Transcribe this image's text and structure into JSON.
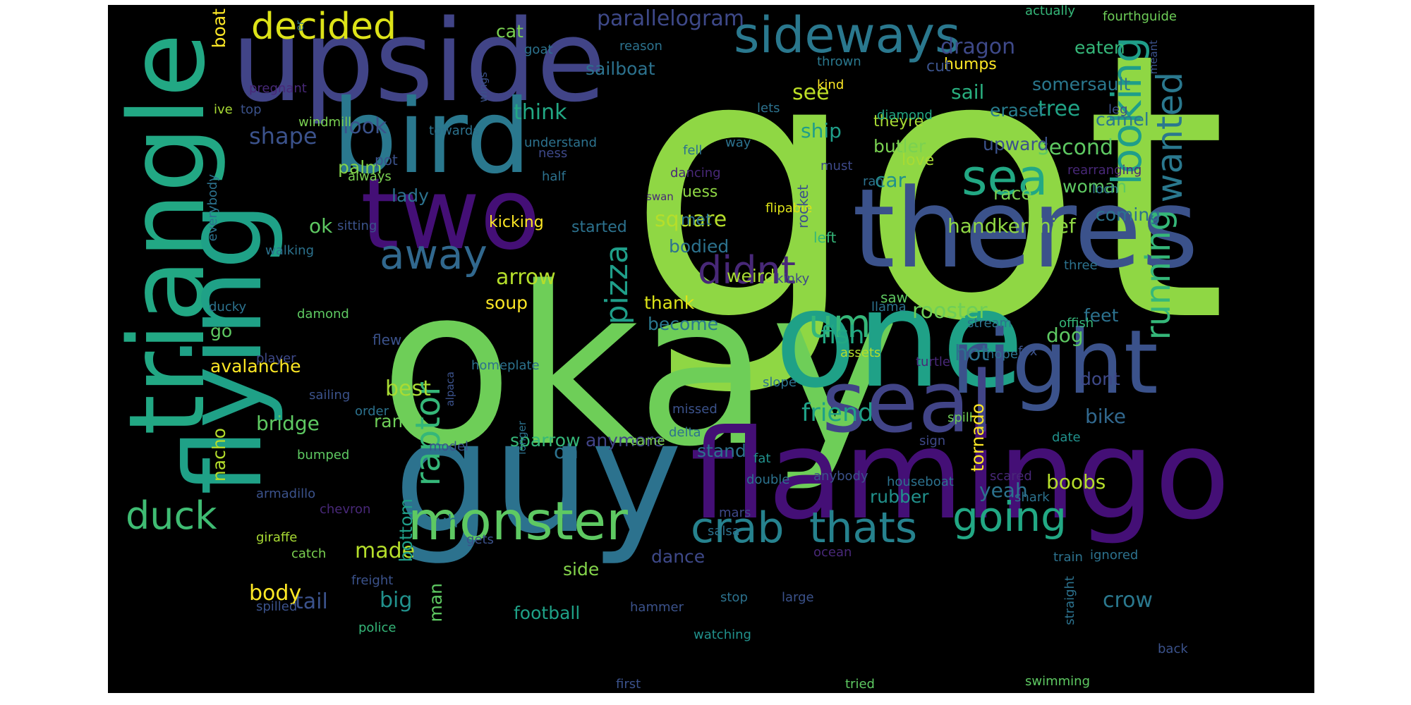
{
  "palette": {
    "background": "#000000",
    "page": "#ffffff",
    "colors": [
      "#440154",
      "#472d7b",
      "#3b528b",
      "#2c728e",
      "#21918c",
      "#28ae80",
      "#5ec962",
      "#addc30",
      "#fde725"
    ]
  },
  "words": [
    {
      "text": "got",
      "color": "#8fd744"
    },
    {
      "text": "okay",
      "color": "#6ece58"
    },
    {
      "text": "one",
      "color": "#1fa187"
    },
    {
      "text": "guy",
      "color": "#2c728e"
    },
    {
      "text": "flamingo",
      "color": "#440f76"
    },
    {
      "text": "upside",
      "color": "#414487"
    },
    {
      "text": "theres",
      "color": "#3b528b"
    },
    {
      "text": "bird",
      "color": "#2a788e"
    },
    {
      "text": "two",
      "color": "#440f76"
    },
    {
      "text": "triangle",
      "color": "#22a884"
    },
    {
      "text": "flying",
      "color": "#1fa187"
    },
    {
      "text": "right",
      "color": "#3b528b"
    },
    {
      "text": "seal",
      "color": "#414487"
    },
    {
      "text": "sideways",
      "color": "#2a788e"
    },
    {
      "text": "monster",
      "color": "#5ec962"
    },
    {
      "text": "sea",
      "color": "#22a884"
    },
    {
      "text": "crab",
      "color": "#26828e"
    },
    {
      "text": "thats",
      "color": "#26828e"
    },
    {
      "text": "going",
      "color": "#22a884"
    },
    {
      "text": "decided",
      "color": "#dde318"
    },
    {
      "text": "looking",
      "color": "#1f9e89"
    },
    {
      "text": "wanted",
      "color": "#2a788e"
    },
    {
      "text": "running",
      "color": "#35b779"
    },
    {
      "text": "pizza",
      "color": "#1f9e89"
    },
    {
      "text": "didnt",
      "color": "#482878"
    },
    {
      "text": "away",
      "color": "#31688e"
    },
    {
      "text": "raptor",
      "color": "#35b779"
    },
    {
      "text": "duck",
      "color": "#3fbc73"
    },
    {
      "text": "um",
      "color": "#35b779"
    },
    {
      "text": "parallelogram",
      "color": "#3e4989"
    },
    {
      "text": "dragon",
      "color": "#3e4989"
    },
    {
      "text": "sailboat",
      "color": "#2c728e"
    },
    {
      "text": "eaten",
      "color": "#35b779"
    },
    {
      "text": "humps",
      "color": "#fde725"
    },
    {
      "text": "sail",
      "color": "#29af7f"
    },
    {
      "text": "somersault",
      "color": "#2a788e"
    },
    {
      "text": "tree",
      "color": "#20a386"
    },
    {
      "text": "eraser",
      "color": "#287d8e"
    },
    {
      "text": "camel",
      "color": "#2a788e"
    },
    {
      "text": "think",
      "color": "#22a884"
    },
    {
      "text": "shape",
      "color": "#3b528b"
    },
    {
      "text": "look",
      "color": "#3b528b"
    },
    {
      "text": "palm",
      "color": "#84d44b"
    },
    {
      "text": "lady",
      "color": "#2c728e"
    },
    {
      "text": "ok",
      "color": "#5ec962"
    },
    {
      "text": "see",
      "color": "#bddf26"
    },
    {
      "text": "ship",
      "color": "#1f9e89"
    },
    {
      "text": "theyre",
      "color": "#a8db34"
    },
    {
      "text": "butler",
      "color": "#7ad151"
    },
    {
      "text": "love",
      "color": "#a8db34"
    },
    {
      "text": "car",
      "color": "#21918c"
    },
    {
      "text": "second",
      "color": "#5ec962"
    },
    {
      "text": "upward",
      "color": "#3b528b"
    },
    {
      "text": "woman",
      "color": "#5ec962"
    },
    {
      "text": "race",
      "color": "#7ad151"
    },
    {
      "text": "coming",
      "color": "#2c728e"
    },
    {
      "text": "square",
      "color": "#b5de2b"
    },
    {
      "text": "bodied",
      "color": "#2c728e"
    },
    {
      "text": "handkerchief",
      "color": "#8fd744"
    },
    {
      "text": "arrow",
      "color": "#b5de2b"
    },
    {
      "text": "weird",
      "color": "#a8db34"
    },
    {
      "text": "soup",
      "color": "#fde725"
    },
    {
      "text": "thank",
      "color": "#dde318"
    },
    {
      "text": "become",
      "color": "#2a788e"
    },
    {
      "text": "rooster",
      "color": "#6ece58"
    },
    {
      "text": "fish",
      "color": "#22a884"
    },
    {
      "text": "dog",
      "color": "#5ec962"
    },
    {
      "text": "feet",
      "color": "#2c728e"
    },
    {
      "text": "avalanche",
      "color": "#fde725"
    },
    {
      "text": "best",
      "color": "#a8db34"
    },
    {
      "text": "friend",
      "color": "#1fa187"
    },
    {
      "text": "hot",
      "color": "#2c728e"
    },
    {
      "text": "dont",
      "color": "#3e4989"
    },
    {
      "text": "bridge",
      "color": "#5ec962"
    },
    {
      "text": "ram",
      "color": "#6ece58"
    },
    {
      "text": "bike",
      "color": "#31688e"
    },
    {
      "text": "tornado",
      "color": "#fde725"
    },
    {
      "text": "sparrow",
      "color": "#35b779"
    },
    {
      "text": "anymore",
      "color": "#414487"
    },
    {
      "text": "oh",
      "color": "#2c728e"
    },
    {
      "text": "stand",
      "color": "#2c728e"
    },
    {
      "text": "yeah",
      "color": "#2c728e"
    },
    {
      "text": "boobs",
      "color": "#b5de2b"
    },
    {
      "text": "rubber",
      "color": "#21918c"
    },
    {
      "text": "nacho",
      "color": "#b5de2b"
    },
    {
      "text": "uh",
      "color": "#2c728e"
    },
    {
      "text": "made",
      "color": "#b5de2b"
    },
    {
      "text": "bottom",
      "color": "#1f9e89"
    },
    {
      "text": "man",
      "color": "#5ec962"
    },
    {
      "text": "big",
      "color": "#21918c"
    },
    {
      "text": "tail",
      "color": "#3b528b"
    },
    {
      "text": "body",
      "color": "#fde725"
    },
    {
      "text": "side",
      "color": "#84d44b"
    },
    {
      "text": "dance",
      "color": "#3e4989"
    },
    {
      "text": "football",
      "color": "#1fa187"
    },
    {
      "text": "crow",
      "color": "#2a788e"
    },
    {
      "text": "boat",
      "color": "#fde725"
    },
    {
      "text": "cat",
      "color": "#7ad151"
    },
    {
      "text": "goat",
      "color": "#2c728e"
    },
    {
      "text": "reason",
      "color": "#2c728e"
    },
    {
      "text": "actually",
      "color": "#35b779"
    },
    {
      "text": "fourthguide",
      "color": "#6ece58"
    },
    {
      "text": "cut",
      "color": "#3b528b"
    },
    {
      "text": "thrown",
      "color": "#2a788e"
    },
    {
      "text": "kind",
      "color": "#fde725"
    },
    {
      "text": "leg",
      "color": "#3b528b"
    },
    {
      "text": "meant",
      "color": "#3b528b"
    },
    {
      "text": "pregnant",
      "color": "#482878"
    },
    {
      "text": "ive",
      "color": "#a8db34"
    },
    {
      "text": "top",
      "color": "#3b528b"
    },
    {
      "text": "windmill",
      "color": "#7ad151"
    },
    {
      "text": "wings",
      "color": "#3b528b"
    },
    {
      "text": "towards",
      "color": "#2c728e"
    },
    {
      "text": "lets",
      "color": "#2c728e"
    },
    {
      "text": "diamond",
      "color": "#22a884"
    },
    {
      "text": "understand",
      "color": "#2c728e"
    },
    {
      "text": "way",
      "color": "#2c728e"
    },
    {
      "text": "fell",
      "color": "#2c728e"
    },
    {
      "text": "must",
      "color": "#3e4989"
    },
    {
      "text": "dancing",
      "color": "#482878"
    },
    {
      "text": "ness",
      "color": "#3e4989"
    },
    {
      "text": "pot",
      "color": "#3b528b"
    },
    {
      "text": "always",
      "color": "#7ad151"
    },
    {
      "text": "half",
      "color": "#2c728e"
    },
    {
      "text": "swan",
      "color": "#482878"
    },
    {
      "text": "guess",
      "color": "#8fd744"
    },
    {
      "text": "met",
      "color": "#2c728e"
    },
    {
      "text": "sitting",
      "color": "#3b528b"
    },
    {
      "text": "kicking",
      "color": "#fde725"
    },
    {
      "text": "started",
      "color": "#2c728e"
    },
    {
      "text": "flipable",
      "color": "#dde318"
    },
    {
      "text": "rocket",
      "color": "#3b528b"
    },
    {
      "text": "loch",
      "color": "#2c728e"
    },
    {
      "text": "ran",
      "color": "#2c728e"
    },
    {
      "text": "rearranging",
      "color": "#482878"
    },
    {
      "text": "everybody",
      "color": "#2c728e"
    },
    {
      "text": "walking",
      "color": "#2c728e"
    },
    {
      "text": "left",
      "color": "#35b779"
    },
    {
      "text": "kinky",
      "color": "#3e4989"
    },
    {
      "text": "three",
      "color": "#2c728e"
    },
    {
      "text": "saw",
      "color": "#5ec962"
    },
    {
      "text": "llama",
      "color": "#2c728e"
    },
    {
      "text": "ducky",
      "color": "#2c728e"
    },
    {
      "text": "damond",
      "color": "#5ec962"
    },
    {
      "text": "go",
      "color": "#5ec962"
    },
    {
      "text": "flew",
      "color": "#3b528b"
    },
    {
      "text": "stream",
      "color": "#2c728e"
    },
    {
      "text": "offish",
      "color": "#35b779"
    },
    {
      "text": "assets",
      "color": "#b5de2b"
    },
    {
      "text": "nope",
      "color": "#2c728e"
    },
    {
      "text": "fox",
      "color": "#3b528b"
    },
    {
      "text": "turtle",
      "color": "#482878"
    },
    {
      "text": "homeplate",
      "color": "#2c728e"
    },
    {
      "text": "player",
      "color": "#3e4989"
    },
    {
      "text": "alpaca",
      "color": "#3b528b"
    },
    {
      "text": "slope",
      "color": "#2c728e"
    },
    {
      "text": "sailing",
      "color": "#3b528b"
    },
    {
      "text": "order",
      "color": "#2c728e"
    },
    {
      "text": "missed",
      "color": "#3b528b"
    },
    {
      "text": "longer",
      "color": "#2c728e"
    },
    {
      "text": "delta",
      "color": "#2c728e"
    },
    {
      "text": "came",
      "color": "#7ad151"
    },
    {
      "text": "spill",
      "color": "#6ece58"
    },
    {
      "text": "sign",
      "color": "#3e4989"
    },
    {
      "text": "date",
      "color": "#21918c"
    },
    {
      "text": "bumped",
      "color": "#5ec962"
    },
    {
      "text": "model",
      "color": "#3b528b"
    },
    {
      "text": "fat",
      "color": "#21918c"
    },
    {
      "text": "double",
      "color": "#2c728e"
    },
    {
      "text": "anybody",
      "color": "#3b528b"
    },
    {
      "text": "houseboat",
      "color": "#2c728e"
    },
    {
      "text": "scared",
      "color": "#482878"
    },
    {
      "text": "armadillo",
      "color": "#3b528b"
    },
    {
      "text": "chevron",
      "color": "#482878"
    },
    {
      "text": "mars",
      "color": "#3e4989"
    },
    {
      "text": "salsa",
      "color": "#2c728e"
    },
    {
      "text": "shark",
      "color": "#2c728e"
    },
    {
      "text": "giraffe",
      "color": "#a8db34"
    },
    {
      "text": "catch",
      "color": "#7ad151"
    },
    {
      "text": "gets",
      "color": "#3b528b"
    },
    {
      "text": "ocean",
      "color": "#482878"
    },
    {
      "text": "freight",
      "color": "#3b528b"
    },
    {
      "text": "train",
      "color": "#2c728e"
    },
    {
      "text": "ignored",
      "color": "#2c728e"
    },
    {
      "text": "spilled",
      "color": "#3b528b"
    },
    {
      "text": "hammer",
      "color": "#3b528b"
    },
    {
      "text": "police",
      "color": "#35b779"
    },
    {
      "text": "stop",
      "color": "#2c728e"
    },
    {
      "text": "large",
      "color": "#3b528b"
    },
    {
      "text": "straight",
      "color": "#2c728e"
    },
    {
      "text": "watching",
      "color": "#21918c"
    },
    {
      "text": "back",
      "color": "#3b528b"
    },
    {
      "text": "first",
      "color": "#3b528b"
    },
    {
      "text": "tried",
      "color": "#5ec962"
    },
    {
      "text": "swimming",
      "color": "#5ec962"
    },
    {
      "text": "er",
      "color": "#2c728e"
    }
  ]
}
